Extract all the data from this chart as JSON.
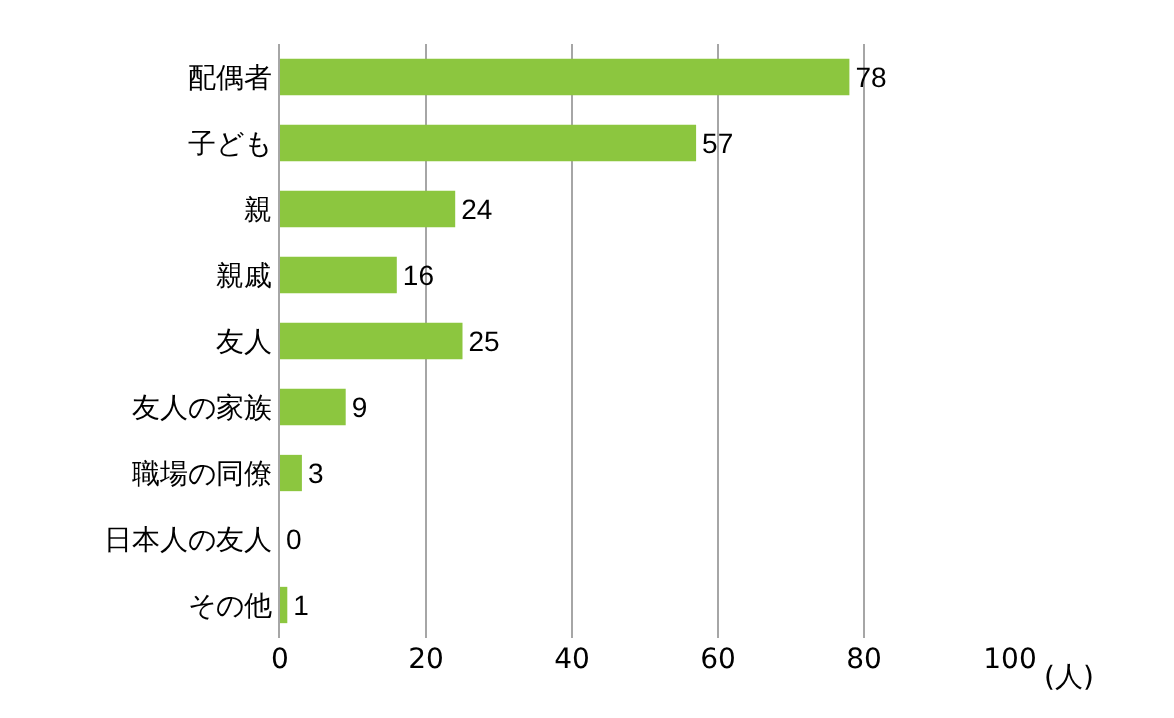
{
  "chart_data": {
    "type": "bar",
    "orientation": "horizontal",
    "categories": [
      "配偶者",
      "子ども",
      "親",
      "親戚",
      "友人",
      "友人の家族",
      "職場の同僚",
      "日本人の友人",
      "その他"
    ],
    "values": [
      78,
      57,
      24,
      16,
      25,
      9,
      3,
      0,
      1
    ],
    "color": "#8cc63f",
    "xlim": [
      0,
      100
    ],
    "xticks": [
      0,
      20,
      40,
      60,
      80,
      100
    ],
    "xlabel": "(人)",
    "grid": "x",
    "data_labels": true
  }
}
